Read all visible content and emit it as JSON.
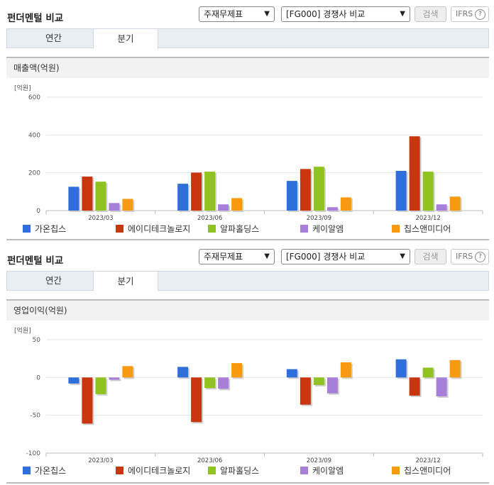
{
  "colors": {
    "series": [
      "#2e6fdc",
      "#c8350f",
      "#8fc31f",
      "#a77fdb",
      "#f79a10"
    ],
    "grid": "#e6e6e6",
    "axis": "#bbbbbb"
  },
  "panels": [
    {
      "title": "펀더멘털 비교",
      "select1": "주재무제표",
      "select2": "[FG000] 경쟁사 비교",
      "search_label": "검색",
      "ifrs_label": "IFRS",
      "ifrs_help": "?",
      "tabs": [
        {
          "label": "연간"
        },
        {
          "label": "분기"
        }
      ],
      "section_title": "매출액(억원)"
    },
    {
      "title": "펀더멘털 비교",
      "select1": "주재무제표",
      "select2": "[FG000] 경쟁사 비교",
      "search_label": "검색",
      "ifrs_label": "IFRS",
      "ifrs_help": "?",
      "tabs": [
        {
          "label": "연간"
        },
        {
          "label": "분기"
        }
      ],
      "section_title": "영업이익(억원)"
    }
  ],
  "chart_data": [
    {
      "type": "bar",
      "unit_label": "[억원]",
      "categories": [
        "2023/03",
        "2023/06",
        "2023/09",
        "2023/12"
      ],
      "ylim": [
        0,
        600
      ],
      "yticks": [
        0,
        200,
        400,
        600
      ],
      "grid": true,
      "legend_position": "bottom",
      "series": [
        {
          "name": "가온칩스",
          "values": [
            126,
            142,
            157,
            210
          ]
        },
        {
          "name": "에이디테크놀로지",
          "values": [
            180,
            201,
            220,
            393
          ]
        },
        {
          "name": "알파홀딩스",
          "values": [
            153,
            206,
            232,
            206
          ]
        },
        {
          "name": "케이알엠",
          "values": [
            40,
            33,
            18,
            33
          ]
        },
        {
          "name": "칩스앤미디어",
          "values": [
            62,
            66,
            70,
            74
          ]
        }
      ]
    },
    {
      "type": "bar",
      "unit_label": "[억원]",
      "categories": [
        "2023/03",
        "2023/06",
        "2023/09",
        "2023/12"
      ],
      "ylim": [
        -100,
        50
      ],
      "yticks": [
        -100,
        -50,
        0,
        50
      ],
      "grid": true,
      "legend_position": "bottom",
      "series": [
        {
          "name": "가온칩스",
          "values": [
            -8,
            14,
            11,
            24
          ]
        },
        {
          "name": "에이디테크놀로지",
          "values": [
            -61,
            -59,
            -36,
            -24
          ]
        },
        {
          "name": "알파홀딩스",
          "values": [
            -22,
            -14,
            -10,
            13
          ]
        },
        {
          "name": "케이알엠",
          "values": [
            -3,
            -15,
            -21,
            -25
          ]
        },
        {
          "name": "칩스앤미디어",
          "values": [
            15,
            19,
            20,
            23
          ]
        }
      ]
    }
  ]
}
